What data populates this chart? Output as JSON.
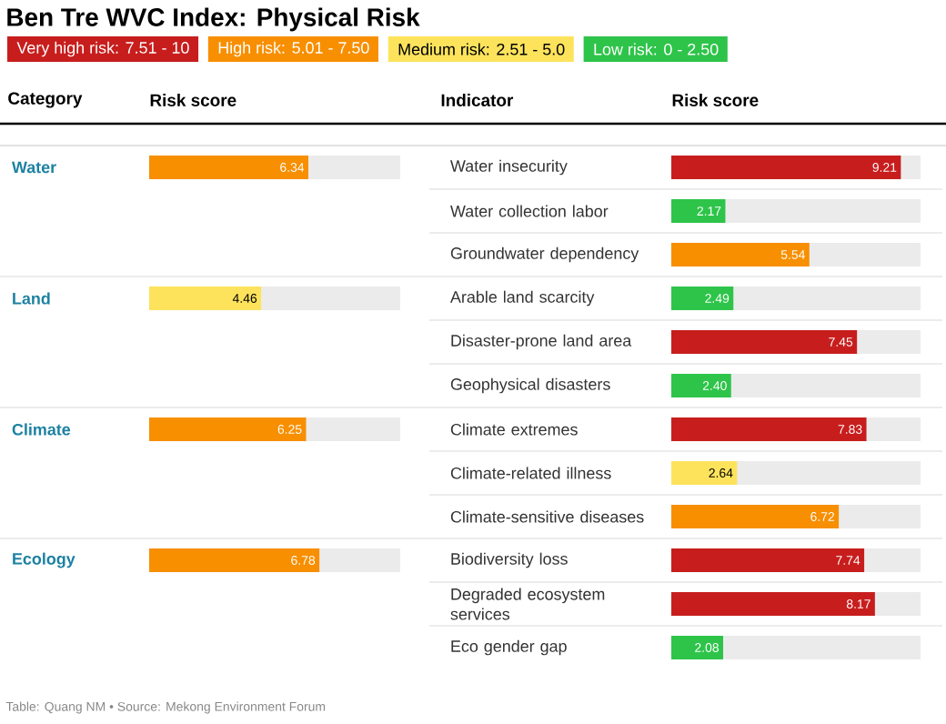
{
  "chart_data": [
    {
      "type": "bar",
      "orientation": "horizontal",
      "stacked": true,
      "title": "Ben Tre WVC Index: Physical Risk",
      "ylabel": "Category",
      "xlabel": "Risk score",
      "xlim": [
        0,
        10
      ],
      "categories": [
        "Water",
        "Land",
        "Climate",
        "Ecology"
      ],
      "series": [
        {
          "color": "#f78f00",
          "values": [
            6.34,
            null,
            6.25,
            6.78
          ],
          "value_labels": [
            "6.34",
            null,
            "6.25",
            "6.78"
          ]
        },
        {
          "color": "#fde35c",
          "values": [
            null,
            4.46,
            null,
            null
          ],
          "value_labels": [
            null,
            "4.46",
            null,
            null
          ]
        }
      ],
      "annotations": [
        "Table: Quang NM • Source: Mekong Environment Forum"
      ]
    },
    {
      "type": "bar",
      "orientation": "horizontal",
      "stacked": true,
      "ylabel": "Indicator",
      "xlabel": "Risk score",
      "legend": "top",
      "xlim": [
        0,
        10
      ],
      "categories": [
        "Water insecurity",
        "Water collection labor",
        "Groundwater dependency",
        "Arable land scarcity",
        "Disaster-prone land area",
        "Geophysical disasters",
        "Climate extremes",
        "Climate-related illness",
        "Climate-sensitive diseases",
        "Biodiversity loss",
        "Degraded ecosystem services",
        "Eco gender gap"
      ],
      "series": [
        {
          "name": "Very high risk: 7.51 - 10",
          "color": "#c71e1d",
          "values": [
            9.21,
            null,
            null,
            null,
            7.45,
            null,
            7.83,
            null,
            null,
            7.74,
            8.17,
            null
          ],
          "value_labels": [
            "9.21",
            null,
            null,
            null,
            "7.45",
            null,
            "7.83",
            null,
            null,
            "7.74",
            "8.17",
            null
          ]
        },
        {
          "name": "High risk: 5.01 - 7.50",
          "color": "#f78f00",
          "values": [
            null,
            null,
            5.54,
            null,
            null,
            null,
            null,
            null,
            6.72,
            null,
            null,
            null
          ],
          "value_labels": [
            null,
            null,
            "5.54",
            null,
            null,
            null,
            null,
            null,
            "6.72",
            null,
            null,
            null
          ]
        },
        {
          "name": "Medium risk: 2.51 - 5.0",
          "color": "#fde35c",
          "values": [
            null,
            null,
            null,
            null,
            null,
            null,
            null,
            2.64,
            null,
            null,
            null,
            null
          ],
          "value_labels": [
            null,
            null,
            null,
            null,
            null,
            null,
            null,
            "2.64",
            null,
            null,
            null,
            null
          ]
        },
        {
          "name": "Low risk: 0 - 2.50",
          "color": "#2ec44a",
          "values": [
            null,
            2.17,
            null,
            2.49,
            null,
            2.4,
            null,
            null,
            null,
            null,
            null,
            2.08
          ],
          "value_labels": [
            null,
            "2.17",
            null,
            "2.49",
            null,
            "2.40",
            null,
            null,
            null,
            null,
            null,
            "2.08"
          ]
        }
      ]
    }
  ]
}
